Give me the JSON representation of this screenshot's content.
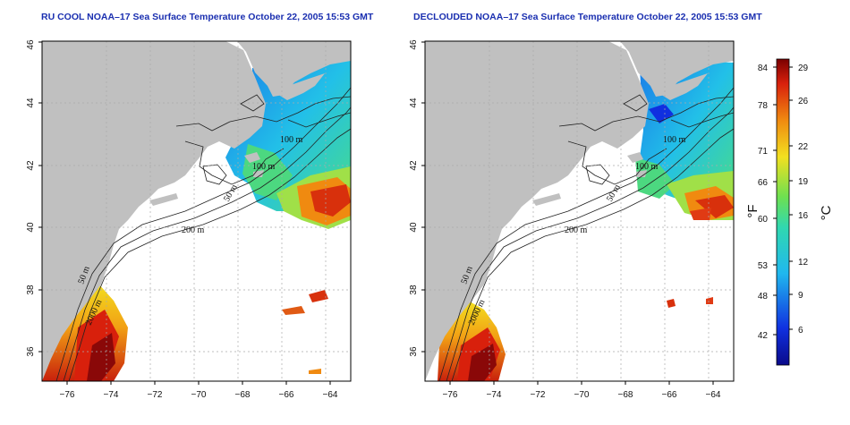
{
  "panels": [
    {
      "title": "RU COOL NOAA–17 Sea Surface Temperature October 22, 2005 15:53 GMT",
      "contour_labels": [
        "100 m",
        "100 m",
        "50 m",
        "200 m",
        "50 m",
        "2000 m"
      ]
    },
    {
      "title": "DECLOUDED NOAA–17 Sea Surface Temperature October 22, 2005 15:53 GMT",
      "contour_labels": [
        "100 m",
        "100 m",
        "50 m",
        "200 m",
        "50 m",
        "2000 m"
      ]
    }
  ],
  "axes": {
    "x_ticks": [
      "−76",
      "−74",
      "−72",
      "−70",
      "−68",
      "−66",
      "−64"
    ],
    "y_ticks": [
      "36",
      "38",
      "40",
      "42",
      "44",
      "46"
    ]
  },
  "colorbar": {
    "fahrenheit_ticks": [
      "84",
      "78",
      "71",
      "66",
      "60",
      "53",
      "48",
      "42"
    ],
    "celsius_ticks": [
      "29",
      "26",
      "22",
      "19",
      "16",
      "12",
      "9",
      "6"
    ],
    "fahrenheit_unit": "°F",
    "celsius_unit": "°C"
  },
  "colors": {
    "land": "#c0c0c0",
    "title": "#1a2fb0",
    "cold": "#0a1fb4",
    "cool": "#1fb4e8",
    "mild": "#3fd67c",
    "warm": "#f2c818",
    "hot": "#e03a14",
    "hottest": "#8a0808"
  }
}
